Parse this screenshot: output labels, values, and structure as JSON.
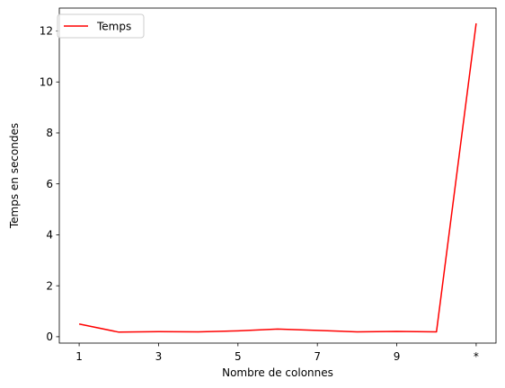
{
  "chart_data": {
    "type": "line",
    "x": [
      1,
      2,
      3,
      4,
      5,
      6,
      7,
      8,
      9,
      10,
      11
    ],
    "series": [
      {
        "name": "Temps",
        "color": "#ff0000",
        "values": [
          0.5,
          0.18,
          0.2,
          0.19,
          0.23,
          0.3,
          0.25,
          0.19,
          0.21,
          0.19,
          12.3
        ]
      }
    ],
    "xticks": [
      1,
      3,
      5,
      7,
      9,
      11
    ],
    "xtick_labels": [
      "1",
      "3",
      "5",
      "7",
      "9",
      "*"
    ],
    "yticks": [
      0,
      2,
      4,
      6,
      8,
      10,
      12
    ],
    "yticks_labels": [
      "0",
      "2",
      "4",
      "6",
      "8",
      "10",
      "12"
    ],
    "xlabel": "Nombre de colonnes",
    "ylabel": "Temps en secondes",
    "xlim": [
      0.5,
      11.5
    ],
    "ylim": [
      -0.25,
      12.9
    ],
    "grid": false,
    "legend": "top-left"
  }
}
